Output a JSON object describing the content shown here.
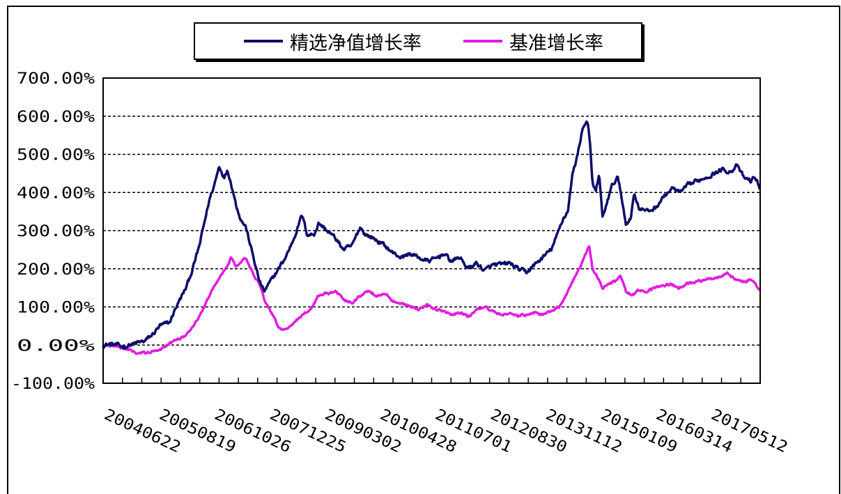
{
  "chart_data": {
    "type": "line",
    "title": "",
    "xlabel": "",
    "ylabel": "",
    "ylim": [
      -100,
      700
    ],
    "yticks": [
      "700.00%",
      "600.00%",
      "500.00%",
      "400.00%",
      "300.00%",
      "200.00%",
      "100.00%",
      "0.00%",
      "-100.00%"
    ],
    "ytick_values": [
      700,
      600,
      500,
      400,
      300,
      200,
      100,
      0,
      -100
    ],
    "xticks": [
      "20040622",
      "20050819",
      "20061026",
      "20071225",
      "20090302",
      "20100428",
      "20110701",
      "20120830",
      "20131112",
      "20150109",
      "20160314",
      "20170512"
    ],
    "grid": "horizontal-dashed",
    "legend_position": "top",
    "series": [
      {
        "name": "精选净值增长率",
        "color": "#0d0d6b",
        "anchors": [
          [
            0,
            0
          ],
          [
            0.4,
            2
          ],
          [
            0.8,
            0
          ],
          [
            1.2,
            -5
          ],
          [
            1.6,
            0
          ],
          [
            2.0,
            5
          ],
          [
            2.5,
            10
          ],
          [
            3.0,
            28
          ],
          [
            3.4,
            50
          ],
          [
            4.0,
            58
          ],
          [
            4.4,
            100
          ],
          [
            5.0,
            150
          ],
          [
            5.4,
            200
          ],
          [
            5.8,
            260
          ],
          [
            6.1,
            320
          ],
          [
            6.4,
            380
          ],
          [
            6.7,
            420
          ],
          [
            7.0,
            470
          ],
          [
            7.3,
            440
          ],
          [
            7.5,
            460
          ],
          [
            7.8,
            410
          ],
          [
            8.0,
            370
          ],
          [
            8.3,
            330
          ],
          [
            8.6,
            310
          ],
          [
            9.0,
            240
          ],
          [
            9.4,
            170
          ],
          [
            9.7,
            140
          ],
          [
            10.0,
            160
          ],
          [
            10.5,
            195
          ],
          [
            11.0,
            230
          ],
          [
            11.5,
            280
          ],
          [
            11.8,
            320
          ],
          [
            12.0,
            340
          ],
          [
            12.3,
            290
          ],
          [
            12.7,
            290
          ],
          [
            13.0,
            320
          ],
          [
            13.5,
            300
          ],
          [
            14.0,
            280
          ],
          [
            14.5,
            250
          ],
          [
            15.0,
            260
          ],
          [
            15.5,
            310
          ],
          [
            15.8,
            290
          ],
          [
            16.3,
            280
          ],
          [
            17.0,
            260
          ],
          [
            17.5,
            240
          ],
          [
            18.0,
            230
          ],
          [
            18.5,
            240
          ],
          [
            19.0,
            230
          ],
          [
            19.5,
            220
          ],
          [
            20.0,
            225
          ],
          [
            20.5,
            240
          ],
          [
            21.0,
            220
          ],
          [
            21.5,
            230
          ],
          [
            22.0,
            200
          ],
          [
            22.5,
            215
          ],
          [
            23.0,
            195
          ],
          [
            23.5,
            210
          ],
          [
            24.0,
            210
          ],
          [
            24.5,
            215
          ],
          [
            25.0,
            200
          ],
          [
            25.5,
            190
          ],
          [
            26.0,
            210
          ],
          [
            26.5,
            230
          ],
          [
            27.0,
            250
          ],
          [
            27.3,
            280
          ],
          [
            27.7,
            330
          ],
          [
            28.0,
            350
          ],
          [
            28.3,
            450
          ],
          [
            28.6,
            500
          ],
          [
            28.9,
            570
          ],
          [
            29.2,
            590
          ],
          [
            29.35,
            520
          ],
          [
            29.5,
            420
          ],
          [
            29.7,
            400
          ],
          [
            29.9,
            450
          ],
          [
            30.1,
            330
          ],
          [
            30.4,
            380
          ],
          [
            30.7,
            420
          ],
          [
            31.0,
            440
          ],
          [
            31.2,
            400
          ],
          [
            31.5,
            320
          ],
          [
            31.8,
            330
          ],
          [
            32.0,
            400
          ],
          [
            32.3,
            360
          ],
          [
            32.8,
            350
          ],
          [
            33.3,
            360
          ],
          [
            33.8,
            390
          ],
          [
            34.3,
            410
          ],
          [
            34.8,
            400
          ],
          [
            35.3,
            420
          ],
          [
            35.8,
            430
          ],
          [
            36.3,
            440
          ],
          [
            36.8,
            450
          ],
          [
            37.3,
            460
          ],
          [
            37.8,
            455
          ],
          [
            38.2,
            470
          ],
          [
            38.6,
            440
          ],
          [
            39.0,
            430
          ],
          [
            39.3,
            440
          ],
          [
            39.6,
            410
          ]
        ]
      },
      {
        "name": "基准增长率",
        "color": "#e21ce0",
        "anchors": [
          [
            0,
            0
          ],
          [
            0.5,
            -2
          ],
          [
            1.0,
            -5
          ],
          [
            1.5,
            -10
          ],
          [
            2.0,
            -20
          ],
          [
            2.5,
            -22
          ],
          [
            3.0,
            -15
          ],
          [
            3.5,
            -10
          ],
          [
            4.0,
            5
          ],
          [
            4.5,
            15
          ],
          [
            5.0,
            25
          ],
          [
            5.5,
            55
          ],
          [
            6.0,
            90
          ],
          [
            6.5,
            140
          ],
          [
            7.0,
            175
          ],
          [
            7.4,
            200
          ],
          [
            7.7,
            230
          ],
          [
            8.0,
            205
          ],
          [
            8.3,
            215
          ],
          [
            8.6,
            230
          ],
          [
            9.0,
            190
          ],
          [
            9.4,
            160
          ],
          [
            9.8,
            110
          ],
          [
            10.2,
            80
          ],
          [
            10.6,
            45
          ],
          [
            11.0,
            40
          ],
          [
            11.5,
            60
          ],
          [
            12.0,
            80
          ],
          [
            12.5,
            95
          ],
          [
            13.0,
            130
          ],
          [
            13.5,
            135
          ],
          [
            14.0,
            140
          ],
          [
            14.5,
            120
          ],
          [
            15.0,
            110
          ],
          [
            15.5,
            130
          ],
          [
            16.0,
            140
          ],
          [
            16.5,
            130
          ],
          [
            17.0,
            135
          ],
          [
            17.5,
            115
          ],
          [
            18.0,
            110
          ],
          [
            18.5,
            100
          ],
          [
            19.0,
            95
          ],
          [
            19.5,
            105
          ],
          [
            20.0,
            95
          ],
          [
            20.5,
            90
          ],
          [
            21.0,
            80
          ],
          [
            21.5,
            85
          ],
          [
            22.0,
            75
          ],
          [
            22.5,
            90
          ],
          [
            23.0,
            100
          ],
          [
            23.5,
            90
          ],
          [
            24.0,
            80
          ],
          [
            24.5,
            85
          ],
          [
            25.0,
            75
          ],
          [
            25.5,
            80
          ],
          [
            26.0,
            85
          ],
          [
            26.5,
            80
          ],
          [
            27.0,
            90
          ],
          [
            27.5,
            100
          ],
          [
            28.0,
            140
          ],
          [
            28.4,
            175
          ],
          [
            28.8,
            210
          ],
          [
            29.1,
            240
          ],
          [
            29.3,
            260
          ],
          [
            29.5,
            200
          ],
          [
            29.8,
            180
          ],
          [
            30.1,
            150
          ],
          [
            30.5,
            160
          ],
          [
            30.9,
            170
          ],
          [
            31.2,
            180
          ],
          [
            31.5,
            140
          ],
          [
            31.9,
            130
          ],
          [
            32.3,
            145
          ],
          [
            32.7,
            140
          ],
          [
            33.2,
            150
          ],
          [
            33.7,
            155
          ],
          [
            34.2,
            160
          ],
          [
            34.7,
            150
          ],
          [
            35.2,
            160
          ],
          [
            35.7,
            165
          ],
          [
            36.2,
            170
          ],
          [
            36.7,
            175
          ],
          [
            37.2,
            180
          ],
          [
            37.6,
            190
          ],
          [
            38.0,
            175
          ],
          [
            38.5,
            165
          ],
          [
            39.0,
            170
          ],
          [
            39.3,
            160
          ],
          [
            39.6,
            145
          ]
        ]
      }
    ]
  }
}
